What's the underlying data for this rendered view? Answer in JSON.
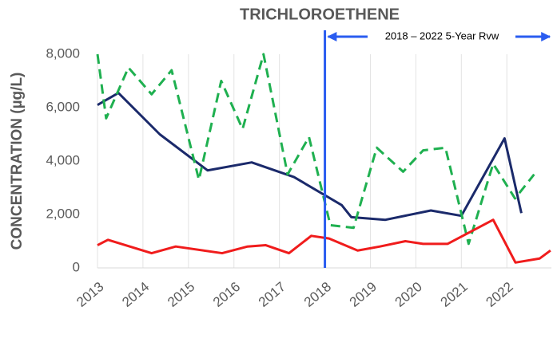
{
  "chart_data": {
    "type": "line",
    "title": "TRICHLOROETHENE",
    "ylabel": "CONCENTRATION (µg/L)",
    "annotation": "2018 – 2022 5-Year Rvw",
    "marker_x": 2018,
    "marker_color": "#2a5cf0",
    "xlim": [
      2013,
      2022.98
    ],
    "xticks": [
      2013,
      2014,
      2015,
      2016,
      2017,
      2018,
      2019,
      2020,
      2021,
      2022
    ],
    "ylim": [
      0,
      8000
    ],
    "yticks": [
      0,
      {
        "value": 2000,
        "label": "2,000"
      },
      {
        "value": 4000,
        "label": "4,000"
      },
      {
        "value": 6000,
        "label": "6,000"
      },
      {
        "value": 8000,
        "label": "8,000"
      }
    ],
    "grid_x": true,
    "series": [
      {
        "color": "#1b2a6b",
        "line_style": "solid",
        "x": [
          2013.0,
          2013.46,
          2014.37,
          2015.42,
          2016.39,
          2017.32,
          2018.37,
          2018.58,
          2019.33,
          2020.33,
          2021.0,
          2021.95,
          2022.32
        ],
        "values": [
          6100,
          6550,
          5000,
          3650,
          3950,
          3400,
          2350,
          1900,
          1800,
          2150,
          1950,
          4850,
          2050
        ]
      },
      {
        "color": "#1fb050",
        "line_style": "dashed",
        "x": [
          2013.0,
          2013.19,
          2013.68,
          2014.19,
          2014.63,
          2015.23,
          2015.72,
          2016.19,
          2016.65,
          2017.18,
          2017.65,
          2018.12,
          2018.63,
          2019.14,
          2019.72,
          2020.16,
          2020.65,
          2021.16,
          2021.7,
          2022.18,
          2022.6
        ],
        "values": [
          8000,
          5600,
          7500,
          6500,
          7400,
          3300,
          7000,
          5200,
          8000,
          3500,
          4900,
          1600,
          1500,
          4500,
          3600,
          4400,
          4500,
          900,
          3900,
          2600,
          3500
        ]
      },
      {
        "color": "#f01c1c",
        "line_style": "solid",
        "x": [
          2013.0,
          2013.23,
          2014.19,
          2014.72,
          2015.74,
          2016.3,
          2016.7,
          2017.21,
          2017.7,
          2018.09,
          2018.72,
          2019.21,
          2019.77,
          2020.16,
          2020.7,
          2021.7,
          2022.19,
          2022.72,
          2022.96
        ],
        "values": [
          850,
          1050,
          550,
          800,
          550,
          800,
          850,
          550,
          1200,
          1100,
          650,
          800,
          1000,
          900,
          900,
          1800,
          200,
          350,
          650
        ]
      }
    ]
  }
}
